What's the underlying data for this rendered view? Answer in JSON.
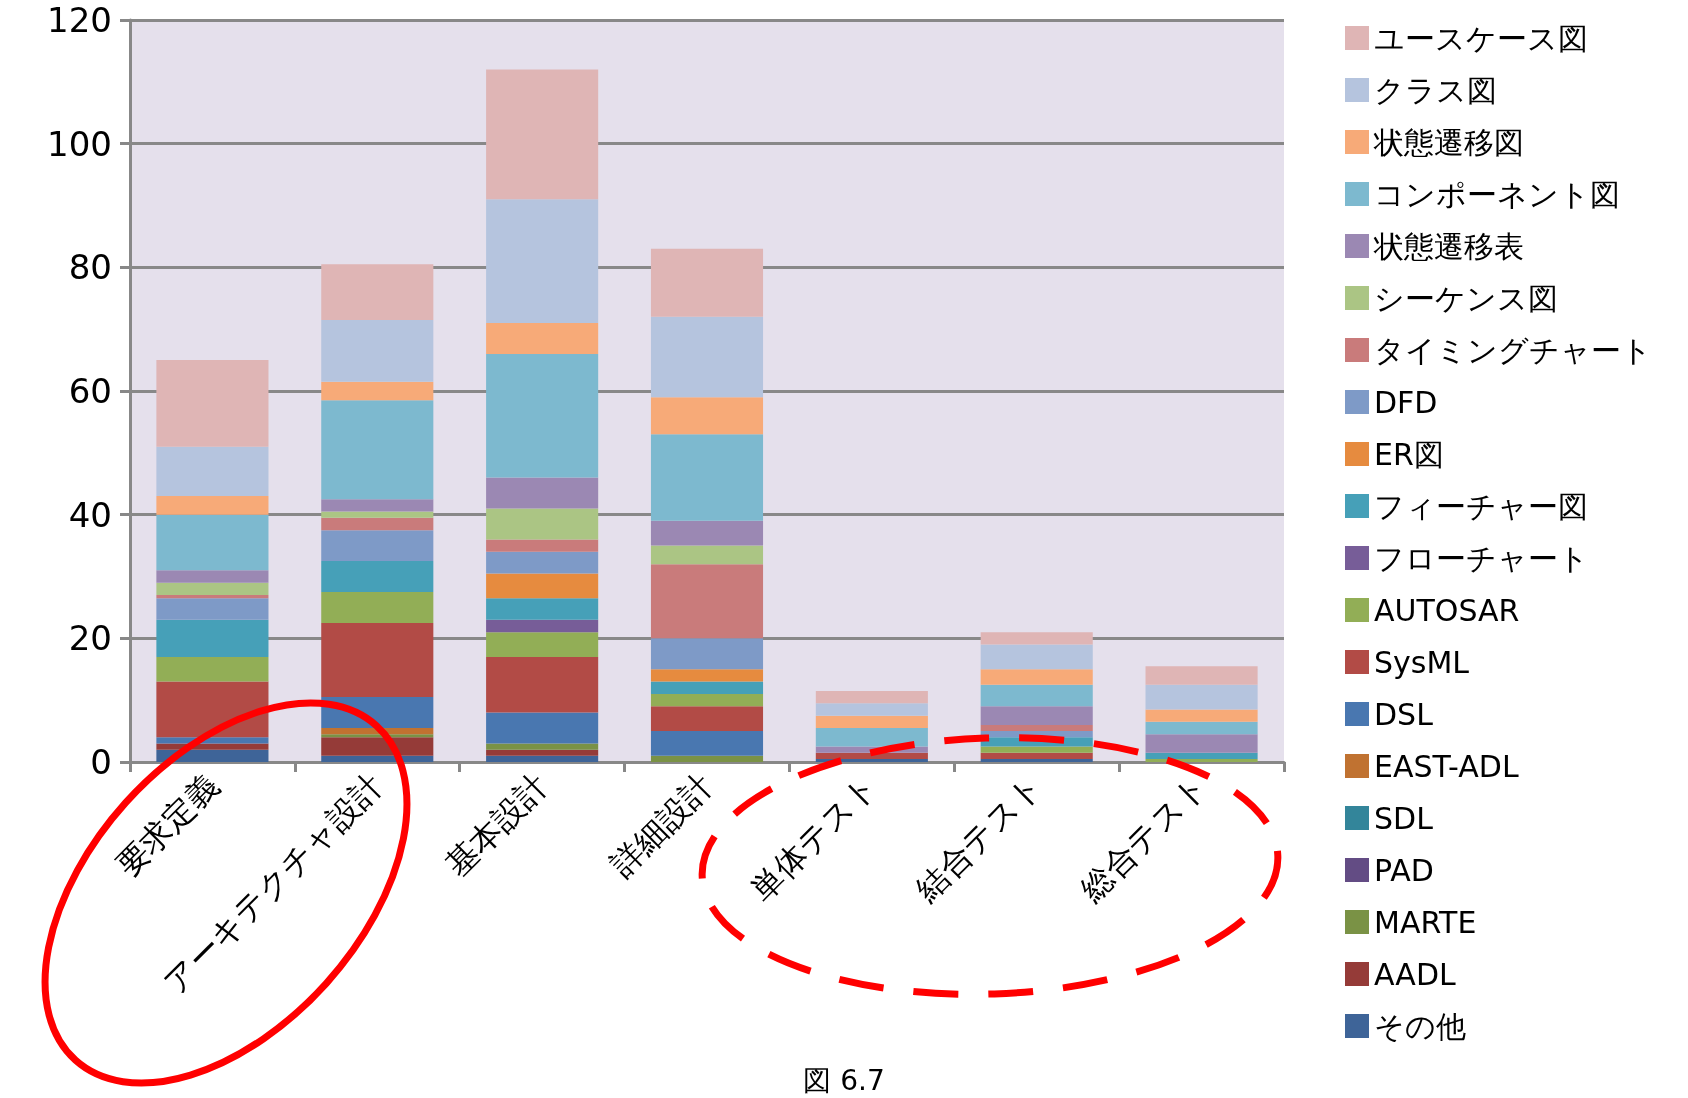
{
  "chart_data": {
    "type": "bar",
    "stacked": true,
    "categories": [
      "要求定義",
      "アーキテクチャ設計",
      "基本設計",
      "詳細設計",
      "単体テスト",
      "結合テスト",
      "総合テスト"
    ],
    "series": [
      {
        "name": "その他",
        "color": "#3e6498",
        "values": [
          2,
          1,
          1,
          0,
          0.5,
          0.5,
          0
        ]
      },
      {
        "name": "AADL",
        "color": "#953b38",
        "values": [
          1,
          3,
          1,
          0,
          0,
          0,
          0
        ]
      },
      {
        "name": "MARTE",
        "color": "#7a9245",
        "values": [
          0,
          0.5,
          1,
          1,
          0,
          0,
          0
        ]
      },
      {
        "name": "PAD",
        "color": "#634c84",
        "values": [
          0,
          0,
          0,
          0,
          0,
          0,
          0
        ]
      },
      {
        "name": "SDL",
        "color": "#33859a",
        "values": [
          0,
          0,
          0,
          0,
          0,
          0,
          0
        ]
      },
      {
        "name": "EAST-ADL",
        "color": "#c07231",
        "values": [
          0,
          1,
          0,
          0,
          0,
          0,
          0
        ]
      },
      {
        "name": "DSL",
        "color": "#4977b0",
        "values": [
          1,
          5,
          5,
          4,
          0,
          0,
          0
        ]
      },
      {
        "name": "SysML",
        "color": "#b24b46",
        "values": [
          9,
          12,
          9,
          4,
          1,
          1,
          0
        ]
      },
      {
        "name": "AUTOSAR",
        "color": "#92ae56",
        "values": [
          4,
          5,
          4,
          2,
          0,
          1,
          0.5
        ]
      },
      {
        "name": "フローチャート",
        "color": "#775d98",
        "values": [
          0,
          0,
          2,
          0,
          0,
          0,
          0
        ]
      },
      {
        "name": "フィーチャー図",
        "color": "#46a0b8",
        "values": [
          6,
          5,
          3.5,
          2,
          0,
          1.5,
          1
        ]
      },
      {
        "name": "ER図",
        "color": "#e68b3f",
        "values": [
          0,
          0,
          4,
          2,
          0,
          0,
          0
        ]
      },
      {
        "name": "DFD",
        "color": "#7e9ac7",
        "values": [
          3.5,
          5,
          3.5,
          5,
          0,
          1,
          0
        ]
      },
      {
        "name": "タイミングチャート",
        "color": "#c97b7b",
        "values": [
          0.5,
          2,
          2,
          12,
          0,
          1,
          0
        ]
      },
      {
        "name": "シーケンス図",
        "color": "#abc584",
        "values": [
          2,
          1,
          5,
          3,
          0,
          0,
          0
        ]
      },
      {
        "name": "状態遷移表",
        "color": "#9b88b3",
        "values": [
          2,
          2,
          5,
          4,
          1,
          3,
          3
        ]
      },
      {
        "name": "コンポーネント図",
        "color": "#7db9cf",
        "values": [
          9,
          16,
          20,
          14,
          3,
          3.5,
          2
        ]
      },
      {
        "name": "状態遷移図",
        "color": "#f7aa78",
        "values": [
          3,
          3,
          5,
          6,
          2,
          2.5,
          2
        ]
      },
      {
        "name": "クラス図",
        "color": "#b5c4de",
        "values": [
          8,
          10,
          20,
          13,
          2,
          4,
          4
        ]
      },
      {
        "name": "ユースケース図",
        "color": "#dfb5b5",
        "values": [
          14,
          9,
          21,
          11,
          2,
          2,
          3
        ]
      }
    ],
    "ylim": [
      0,
      120
    ],
    "yticks": [
      0,
      20,
      40,
      60,
      80,
      100,
      120
    ],
    "grid": "y",
    "legend": "right",
    "annotations": [
      "図 6.7"
    ]
  }
}
